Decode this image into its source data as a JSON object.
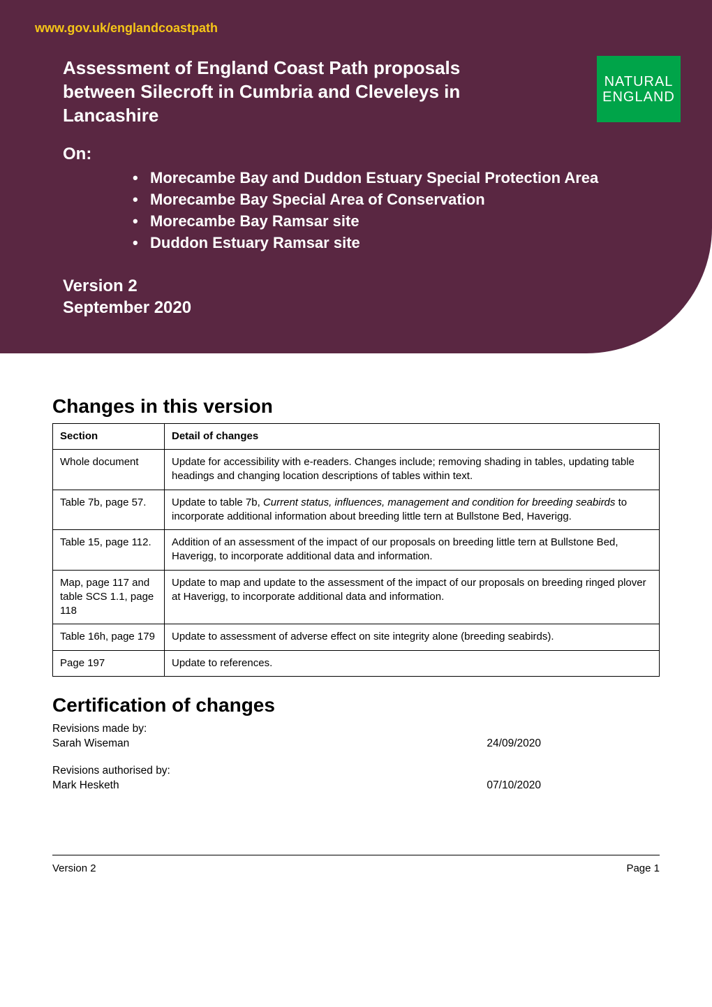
{
  "header": {
    "url": "www.gov.uk/englandcoastpath",
    "title": "Assessment of England Coast Path proposals between Silecroft in Cumbria and Cleveleys in Lancashire",
    "on_label": "On:",
    "sites": [
      "Morecambe Bay and Duddon Estuary Special Protection Area",
      "Morecambe Bay Special Area of Conservation",
      "Morecambe Bay Ramsar site",
      "Duddon Estuary Ramsar site"
    ],
    "version_line1": "Version 2",
    "version_line2": "September 2020",
    "logo": {
      "line1": "NATURAL",
      "line2": "ENGLAND"
    }
  },
  "changes_section": {
    "heading": "Changes in this version",
    "columns": [
      "Section",
      "Detail of changes"
    ],
    "column_widths": [
      "160px",
      "auto"
    ],
    "rows": [
      {
        "section": "Whole document",
        "detail_plain": "Update for accessibility with e-readers. Changes include; removing shading in tables, updating table headings and changing location descriptions of tables within text."
      },
      {
        "section": "Table 7b, page 57.",
        "detail_prefix": "Update to table 7b, ",
        "detail_italic": "Current status, influences, management and condition for breeding seabirds",
        "detail_suffix": " to incorporate additional information about breeding little tern at Bullstone Bed, Haverigg."
      },
      {
        "section": "Table 15, page 112.",
        "detail_plain": "Addition of an assessment of the impact of our proposals on breeding little tern at Bullstone Bed, Haverigg, to incorporate additional data and information."
      },
      {
        "section": "Map, page 117 and table SCS 1.1, page 118",
        "detail_plain": "Update to map and update to the assessment of the impact of our proposals on breeding ringed plover at Haverigg, to incorporate additional data and information."
      },
      {
        "section": "Table 16h, page 179",
        "detail_plain": "Update to assessment of adverse effect on site integrity alone (breeding seabirds)."
      },
      {
        "section": "Page 197",
        "detail_plain": "Update to references."
      }
    ]
  },
  "certification": {
    "heading": "Certification of changes",
    "made_by_label": "Revisions made by:",
    "made_by_name": "Sarah Wiseman",
    "made_by_date": "24/09/2020",
    "auth_by_label": "Revisions authorised by:",
    "auth_by_name": "Mark Hesketh",
    "auth_by_date": "07/10/2020"
  },
  "footer": {
    "left": "Version 2",
    "right": "Page 1"
  },
  "colors": {
    "header_bg": "#5a2742",
    "url_text": "#f5c518",
    "white": "#ffffff",
    "logo_bg": "#00a449",
    "black": "#000000"
  },
  "typography": {
    "family": "Arial, Helvetica, sans-serif",
    "title_size": 26,
    "heading_size": 28,
    "list_size": 22,
    "table_size": 15,
    "footer_size": 15
  }
}
